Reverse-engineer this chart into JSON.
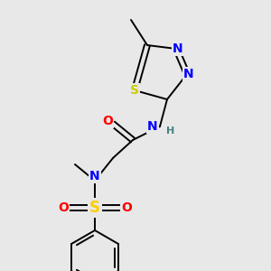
{
  "bg_color": "#e8e8e8",
  "atom_colors": {
    "C": "#000000",
    "N": "#0000ff",
    "O": "#ff0000",
    "S_ring": "#cccc00",
    "S_sulfonyl": "#ffcc00",
    "H": "#4a8080"
  },
  "bond_color": "#000000",
  "bond_lw": 1.4,
  "font_size": 10,
  "font_size_small": 8
}
